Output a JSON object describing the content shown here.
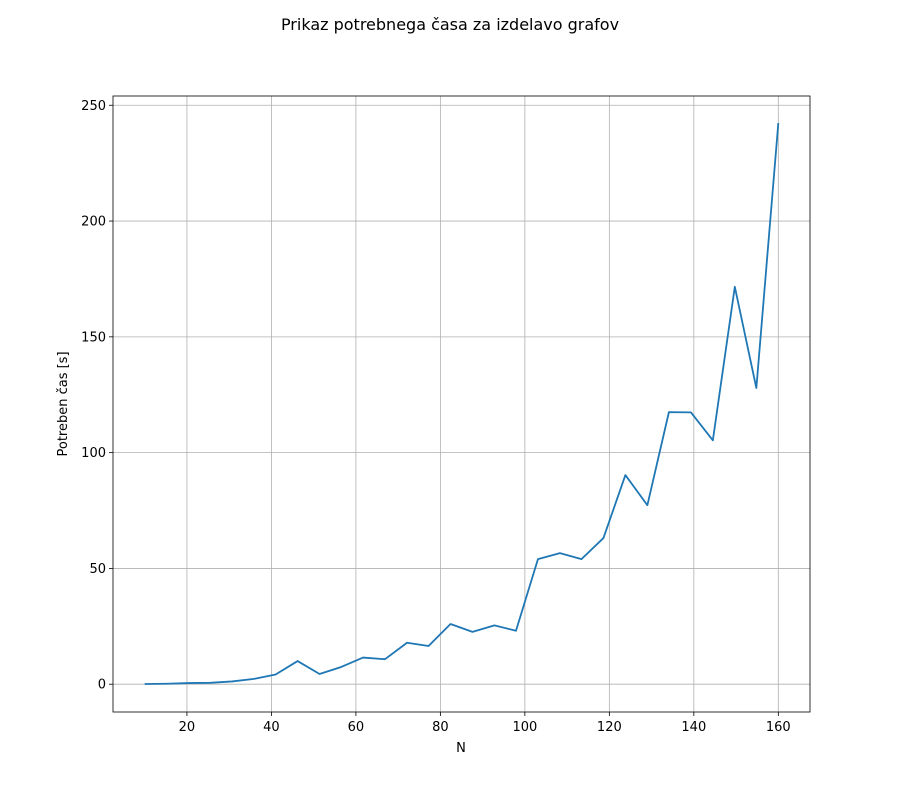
{
  "chart_data": {
    "type": "line",
    "title": "Prikaz potrebnega časa za izdelavo grafov",
    "xlabel": "N",
    "ylabel": "Potreben čas [s]",
    "xlim": [
      2.5,
      167.5
    ],
    "ylim": [
      -12,
      254
    ],
    "xticks": [
      20,
      40,
      60,
      80,
      100,
      120,
      140,
      160
    ],
    "yticks": [
      0,
      50,
      100,
      150,
      200,
      250
    ],
    "grid": true,
    "series": [
      {
        "color": "#1f77b4",
        "x": [
          10,
          15.2,
          20.3,
          25.5,
          30.7,
          35.9,
          41,
          46.2,
          51.4,
          56.6,
          61.7,
          66.9,
          72.1,
          77.2,
          82.4,
          87.6,
          92.8,
          97.9,
          103.1,
          108.3,
          113.4,
          118.6,
          123.8,
          129,
          134.1,
          139.3,
          144.5,
          149.7,
          154.8,
          160
        ],
        "y": [
          0.1,
          0.2,
          0.5,
          0.6,
          1.2,
          2.3,
          4.2,
          10,
          4.4,
          7.5,
          11.5,
          10.8,
          17.9,
          16.5,
          26,
          22.6,
          25.4,
          23.1,
          54,
          56.6,
          54,
          63.1,
          90.3,
          77.3,
          117.5,
          117.4,
          105.3,
          171.6,
          127.9,
          242.3
        ]
      }
    ]
  }
}
